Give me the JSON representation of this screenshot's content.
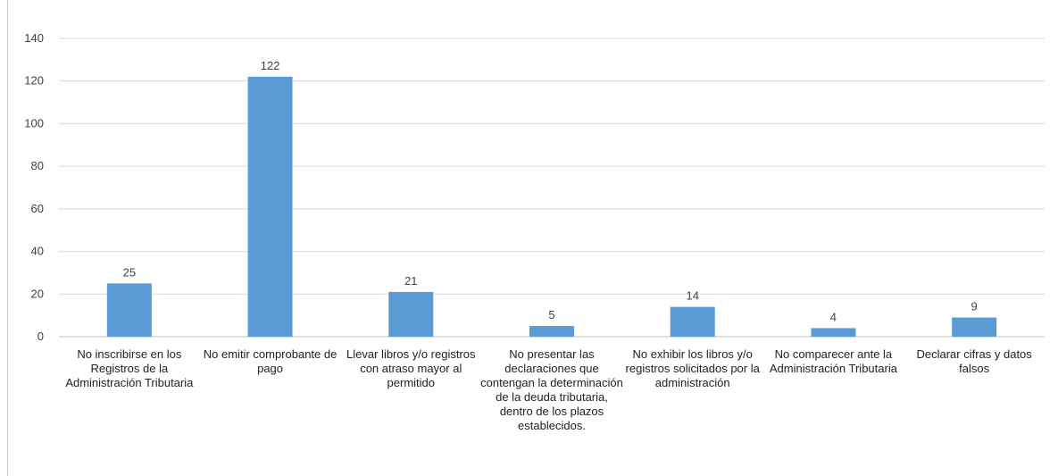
{
  "chart_data": {
    "type": "bar",
    "title": "",
    "xlabel": "",
    "ylabel": "",
    "ylim": [
      0,
      140
    ],
    "yticks": [
      0,
      20,
      40,
      60,
      80,
      100,
      120,
      140
    ],
    "grid": true,
    "legend": "none",
    "categories": [
      "No inscribirse en los Registros de la Administración Tributaria",
      "No emitir comprobante de pago",
      "Llevar libros y/o registros con atraso mayor al permitido",
      "No presentar las declaraciones que contengan la determinación de la deuda tributaria, dentro de los plazos establecidos.",
      "No exhibir los libros y/o registros solicitados por la administración",
      "No comparecer ante la Administración Tributaria",
      "Declarar cifras y datos falsos"
    ],
    "values": [
      25,
      122,
      21,
      5,
      14,
      4,
      9
    ],
    "data_labels": [
      "25",
      "122",
      "21",
      "5",
      "14",
      "4",
      "9"
    ],
    "colors": {
      "bar": "#5b9bd5",
      "grid": "#d9d9d9",
      "axis": "#bfbfbf",
      "text": "#404040"
    }
  }
}
